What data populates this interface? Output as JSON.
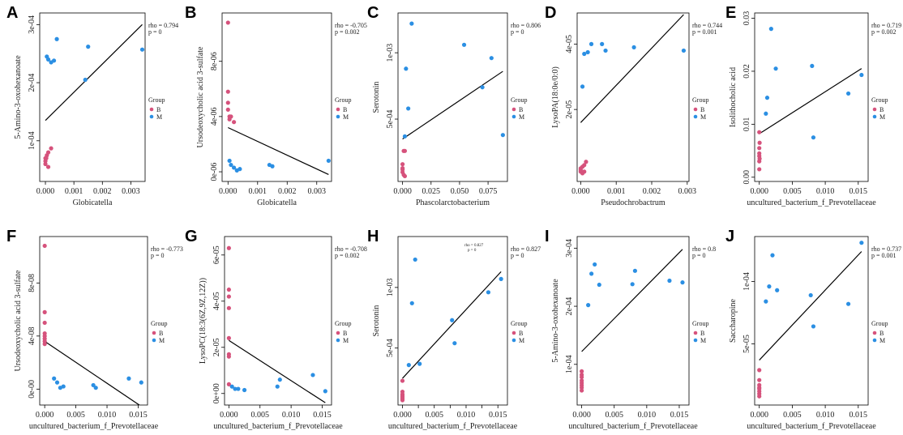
{
  "colors": {
    "group_B": "#d6527c",
    "group_M": "#2b8fe3",
    "line": "#000000",
    "axis": "#000000"
  },
  "legend": {
    "title": "Group",
    "labels": [
      "B",
      "M"
    ]
  },
  "chart_data": [
    {
      "panel": "A",
      "type": "scatter",
      "xlabel": "Globicatella",
      "ylabel": "5-Amino-3-oxohexanoate",
      "xlim": [
        -0.0002,
        0.0035
      ],
      "ylim": [
        3e-05,
        0.00032
      ],
      "xticks": [
        0,
        0.001,
        0.002,
        0.003
      ],
      "xtick_labels": [
        "0.000",
        "0.001",
        "0.002",
        "0.003"
      ],
      "yticks": [
        0.0001,
        0.0002,
        0.0003
      ],
      "ytick_labels": [
        "1e-04",
        "2e-04",
        "3e-04"
      ],
      "stats": {
        "rho": "rho = 0.794",
        "p": "p = 0"
      },
      "series": [
        {
          "name": "B",
          "x": [
            0,
            0,
            0,
            5e-05,
            0.0001,
            0.0002,
            0.0001,
            3e-05
          ],
          "y": [
            6e-05,
            6.5e-05,
            7e-05,
            7.5e-05,
            8e-05,
            8.7e-05,
            5.5e-05,
            7e-05
          ]
        },
        {
          "name": "M",
          "x": [
            5e-05,
            0.0001,
            0.0002,
            0.0003,
            0.0004,
            0.0014,
            0.0015,
            0.0034
          ],
          "y": [
            0.000245,
            0.00024,
            0.000235,
            0.000238,
            0.000275,
            0.000205,
            0.000262,
            0.000257
          ]
        }
      ],
      "fit": {
        "x": [
          0,
          0.0034
        ],
        "y": [
          0.000135,
          0.0003
        ]
      }
    },
    {
      "panel": "B",
      "type": "scatter",
      "xlabel": "Globicatella",
      "ylabel": "Ursodeoxycholic acid 3-sulfate",
      "xlim": [
        -0.0002,
        0.0035
      ],
      "ylim": [
        -7e-07,
        1.15e-05
      ],
      "xticks": [
        0,
        0.001,
        0.002,
        0.003
      ],
      "xtick_labels": [
        "0.000",
        "0.001",
        "0.002",
        "0.003"
      ],
      "yticks": [
        0,
        4e-06,
        8e-06
      ],
      "ytick_labels": [
        "0e-06",
        "4e-06",
        "8e-06"
      ],
      "stats": {
        "rho": "rho = -0.705",
        "p": "p = 0.002"
      },
      "series": [
        {
          "name": "B",
          "x": [
            0,
            0,
            0,
            0,
            5e-05,
            0.0001,
            0.0002,
            5e-05
          ],
          "y": [
            1.08e-05,
            5.8e-06,
            5e-06,
            4.5e-06,
            4e-06,
            4e-06,
            3.6e-06,
            3.8e-06
          ]
        },
        {
          "name": "M",
          "x": [
            5e-05,
            0.0001,
            0.0002,
            0.0003,
            0.0004,
            0.0014,
            0.0015,
            0.0034
          ],
          "y": [
            8e-07,
            5e-07,
            3e-07,
            1e-07,
            2e-07,
            5e-07,
            4e-07,
            8e-07
          ]
        }
      ],
      "fit": {
        "x": [
          0,
          0.0034
        ],
        "y": [
          3.2e-06,
          -2e-07
        ]
      }
    },
    {
      "panel": "C",
      "type": "scatter",
      "xlabel": "Phascolarctobacterium",
      "ylabel": "Serotonin",
      "xlim": [
        -0.004,
        0.092
      ],
      "ylim": [
        3e-05,
        0.0013
      ],
      "xticks": [
        0,
        0.025,
        0.05,
        0.075
      ],
      "xtick_labels": [
        "0.000",
        "0.025",
        "0.050",
        "0.075"
      ],
      "yticks": [
        0.0005,
        0.001
      ],
      "ytick_labels": [
        "5e-04",
        "1e-03"
      ],
      "stats": {
        "rho": "rho = 0.806",
        "p": "p = 0"
      },
      "series": [
        {
          "name": "B",
          "x": [
            0,
            0,
            0,
            0,
            0.001,
            0.002,
            0.001,
            0.002
          ],
          "y": [
            0.00016,
            0.00013,
            0.00012,
            0.0001,
            8e-05,
            7e-05,
            0.00026,
            0.00026
          ]
        },
        {
          "name": "M",
          "x": [
            0.002,
            0.003,
            0.005,
            0.008,
            0.054,
            0.07,
            0.078,
            0.088
          ],
          "y": [
            0.00037,
            0.00088,
            0.00058,
            0.00122,
            0.00106,
            0.00074,
            0.00096,
            0.00038
          ]
        }
      ],
      "fit": {
        "x": [
          0,
          0.088
        ],
        "y": [
          0.00035,
          0.00086
        ]
      }
    },
    {
      "panel": "D",
      "type": "scatter",
      "xlabel": "Pseudochrobactrum",
      "ylabel": "LysoPA(18:0e/0:0)",
      "xlim": [
        -0.0001,
        0.00305
      ],
      "ylim": [
        -2e-06,
        4.95e-05
      ],
      "xticks": [
        0,
        0.001,
        0.002,
        0.003
      ],
      "xtick_labels": [
        "0.000",
        "0.001",
        "0.002",
        "0.003"
      ],
      "yticks": [
        2e-05,
        4e-05
      ],
      "ytick_labels": [
        "2e-05",
        "4e-05"
      ],
      "stats": {
        "rho": "rho = 0.744",
        "p": "p = 0.001"
      },
      "series": [
        {
          "name": "B",
          "x": [
            0,
            0,
            0,
            5e-05,
            0.0001,
            0.00015,
            5e-05,
            0.0001
          ],
          "y": [
            2e-06,
            1.5e-06,
            1e-06,
            2.5e-06,
            3e-06,
            4e-06,
            5e-07,
            1e-06
          ]
        },
        {
          "name": "M",
          "x": [
            5e-05,
            0.0001,
            0.0002,
            0.0003,
            0.0006,
            0.0007,
            0.0015,
            0.0029
          ],
          "y": [
            2.7e-05,
            3.7e-05,
            3.75e-05,
            4e-05,
            4e-05,
            3.8e-05,
            3.9e-05,
            3.8e-05
          ]
        }
      ],
      "fit": {
        "x": [
          0,
          0.0029
        ],
        "y": [
          1.6e-05,
          4.9e-05
        ]
      }
    },
    {
      "panel": "E",
      "type": "scatter",
      "xlabel": "uncultured_bacterium_f_Prevotellaceae",
      "ylabel": "Isolithocholic acid",
      "xlim": [
        -0.0007,
        0.0165
      ],
      "ylim": [
        -0.0008,
        0.031
      ],
      "xticks": [
        0,
        0.005,
        0.01,
        0.015
      ],
      "xtick_labels": [
        "0.000",
        "0.005",
        "0.010",
        "0.015"
      ],
      "yticks": [
        0,
        0.01,
        0.02,
        0.03
      ],
      "ytick_labels": [
        "0.00",
        "0.01",
        "0.02",
        "0.03"
      ],
      "stats": {
        "rho": "rho = 0.719",
        "p": "p = 0.002"
      },
      "series": [
        {
          "name": "B",
          "x": [
            0,
            0,
            0,
            0,
            0,
            0,
            5e-05,
            5e-05
          ],
          "y": [
            0.0085,
            0.0055,
            0.0045,
            0.004,
            0.003,
            0.0015,
            0.0035,
            0.0065
          ]
        },
        {
          "name": "M",
          "x": [
            0.001,
            0.0012,
            0.0018,
            0.0025,
            0.008,
            0.0082,
            0.0135,
            0.0155
          ],
          "y": [
            0.012,
            0.015,
            0.028,
            0.0205,
            0.021,
            0.0075,
            0.0158,
            0.0193
          ]
        }
      ],
      "fit": {
        "x": [
          0,
          0.0155
        ],
        "y": [
          0.0082,
          0.0205
        ]
      }
    },
    {
      "panel": "F",
      "type": "scatter",
      "xlabel": "uncultured_bacterium_f_Prevotellaceae",
      "ylabel": "Ursodeoxycholic acid 3-sulfate",
      "xlim": [
        -0.0008,
        0.0165
      ],
      "ylim": [
        -1.2e-08,
        1.15e-07
      ],
      "xticks": [
        0,
        0.005,
        0.01,
        0.015
      ],
      "xtick_labels": [
        "0.000",
        "0.005",
        "0.010",
        "0.015"
      ],
      "yticks": [
        0,
        4e-08,
        8e-08
      ],
      "ytick_labels": [
        "0e-00",
        "4e-08",
        "8e-08"
      ],
      "stats": {
        "rho": "rho = -0.773",
        "p": "p = 0"
      },
      "series": [
        {
          "name": "B",
          "x": [
            0,
            0,
            0,
            0,
            0,
            0,
            0,
            0
          ],
          "y": [
            1.08e-07,
            5.8e-08,
            5e-08,
            4.2e-08,
            3.8e-08,
            3.6e-08,
            3.4e-08,
            4e-08
          ]
        },
        {
          "name": "M",
          "x": [
            0.0015,
            0.002,
            0.0025,
            0.003,
            0.0078,
            0.0082,
            0.0135,
            0.0155
          ],
          "y": [
            8e-09,
            5e-09,
            1e-09,
            2e-09,
            3e-09,
            1e-09,
            8e-09,
            5e-09
          ]
        }
      ],
      "fit": {
        "x": [
          0,
          0.0155
        ],
        "y": [
          3.6e-08,
          -1.3e-08
        ]
      }
    },
    {
      "panel": "G",
      "type": "scatter",
      "xlabel": "uncultured_bacterium_f_Prevotellaceae",
      "ylabel": "LysoPC(18:3(6Z,9Z,12Z))",
      "xlim": [
        -0.0007,
        0.0165
      ],
      "ylim": [
        -5e-06,
        6.8e-05
      ],
      "xticks": [
        0,
        0.005,
        0.01,
        0.015
      ],
      "xtick_labels": [
        "0.000",
        "0.005",
        "0.010",
        "0.015"
      ],
      "yticks": [
        0,
        2e-05,
        4e-05,
        6e-05
      ],
      "ytick_labels": [
        "0e+00",
        "2e-05",
        "4e-05",
        "6e-05"
      ],
      "stats": {
        "rho": "rho = -0.708",
        "p": "p = 0.002"
      },
      "series": [
        {
          "name": "B",
          "x": [
            0,
            0,
            0,
            0,
            0,
            0,
            0,
            0
          ],
          "y": [
            6.3e-05,
            4.5e-05,
            4.2e-05,
            3.7e-05,
            2.4e-05,
            1.7e-05,
            1.6e-05,
            4e-06
          ]
        },
        {
          "name": "M",
          "x": [
            0.001,
            0.0015,
            0.0025,
            0.0078,
            0.0082,
            0.0135,
            0.0155,
            0.0005
          ],
          "y": [
            2e-06,
            2e-06,
            1.5e-06,
            3e-06,
            6e-06,
            8e-06,
            1e-06,
            3e-06
          ]
        }
      ],
      "fit": {
        "x": [
          0,
          0.0155
        ],
        "y": [
          2.3e-05,
          -4e-06
        ]
      }
    },
    {
      "panel": "H",
      "type": "scatter",
      "xlabel": "uncultured_bacterium_f_Prevotellaceae",
      "ylabel": "Serotonin",
      "xlim": [
        -0.0007,
        0.0165
      ],
      "ylim": [
        3e-05,
        0.00142
      ],
      "xticks": [
        0,
        0.0025,
        0.005,
        0.0075,
        0.01,
        0.0125,
        0.015
      ],
      "xtick_labels": [
        "0.000",
        "0.005",
        "0.010",
        "0.015"
      ],
      "xtick_label_values": [
        0,
        0.005,
        0.01,
        0.015
      ],
      "yticks": [
        0.0005,
        0.001
      ],
      "ytick_labels": [
        "5e-04",
        "1e-03"
      ],
      "stats": {
        "rho": "rho = 0.827",
        "p": "p = 0"
      },
      "inset_stats": {
        "rho": "rho = 0.827",
        "p": "p = 0"
      },
      "series": [
        {
          "name": "B",
          "x": [
            0,
            0,
            0,
            0,
            0,
            0,
            0,
            0
          ],
          "y": [
            0.00023,
            0.00014,
            0.00012,
            0.0001,
            9e-05,
            8e-05,
            7e-05,
            0.00011
          ]
        },
        {
          "name": "M",
          "x": [
            0.001,
            0.0015,
            0.002,
            0.0027,
            0.0078,
            0.0082,
            0.0135,
            0.0155
          ],
          "y": [
            0.00036,
            0.00087,
            0.00123,
            0.00037,
            0.00073,
            0.00054,
            0.00096,
            0.00107
          ]
        }
      ],
      "fit": {
        "x": [
          0,
          0.0155
        ],
        "y": [
          0.00025,
          0.00113
        ]
      }
    },
    {
      "panel": "I",
      "type": "scatter",
      "xlabel": "uncultured_bacterium_f_Prevotellaceae",
      "ylabel": "5-Amino-3-oxohexanoate",
      "xlim": [
        -0.0007,
        0.0165
      ],
      "ylim": [
        3e-05,
        0.00032
      ],
      "xticks": [
        0,
        0.005,
        0.01,
        0.015
      ],
      "xtick_labels": [
        "0.000",
        "0.005",
        "0.010",
        "0.015"
      ],
      "yticks": [
        0.0001,
        0.0002,
        0.0003
      ],
      "ytick_labels": [
        "1e-04",
        "2e-04",
        "3e-04"
      ],
      "stats": {
        "rho": "rho = 0.8",
        "p": "p = 0"
      },
      "series": [
        {
          "name": "B",
          "x": [
            0,
            0,
            0,
            0,
            0,
            0,
            0,
            0
          ],
          "y": [
            8.8e-05,
            7.8e-05,
            7.2e-05,
            6.8e-05,
            6.4e-05,
            6e-05,
            5.5e-05,
            8.2e-05
          ]
        },
        {
          "name": "M",
          "x": [
            0.001,
            0.0015,
            0.002,
            0.0027,
            0.0078,
            0.0082,
            0.0135,
            0.0155
          ],
          "y": [
            0.000202,
            0.000256,
            0.000272,
            0.000237,
            0.000238,
            0.000261,
            0.000244,
            0.000241
          ]
        }
      ],
      "fit": {
        "x": [
          0,
          0.0155
        ],
        "y": [
          0.000122,
          0.000298
        ]
      }
    },
    {
      "panel": "J",
      "type": "scatter",
      "xlabel": "uncultured_bacterium_f_Prevotellaceae",
      "ylabel": "Saccharopine",
      "xlim": [
        -0.0007,
        0.0165
      ],
      "ylim": [
        1e-06,
        0.000136
      ],
      "xticks": [
        0,
        0.005,
        0.01,
        0.015
      ],
      "xtick_labels": [
        "0.000",
        "0.005",
        "0.010",
        "0.015"
      ],
      "yticks": [
        5e-05,
        0.0001
      ],
      "ytick_labels": [
        "5e-05",
        "1e-04"
      ],
      "stats": {
        "rho": "rho = 0.737",
        "p": "p = 0.001"
      },
      "series": [
        {
          "name": "B",
          "x": [
            0,
            0,
            0,
            0,
            0,
            0,
            0,
            0
          ],
          "y": [
            2.9e-05,
            2.1e-05,
            1.7e-05,
            1.4e-05,
            1.2e-05,
            1e-05,
            8e-06,
            1.5e-05
          ]
        },
        {
          "name": "M",
          "x": [
            0.001,
            0.0015,
            0.002,
            0.0027,
            0.0078,
            0.0082,
            0.0135,
            0.0155
          ],
          "y": [
            8.4e-05,
            9.6e-05,
            0.000121,
            9.3e-05,
            8.9e-05,
            6.4e-05,
            8.2e-05,
            0.000131
          ]
        }
      ],
      "fit": {
        "x": [
          0,
          0.0155
        ],
        "y": [
          3.7e-05,
          0.000124
        ]
      }
    }
  ]
}
